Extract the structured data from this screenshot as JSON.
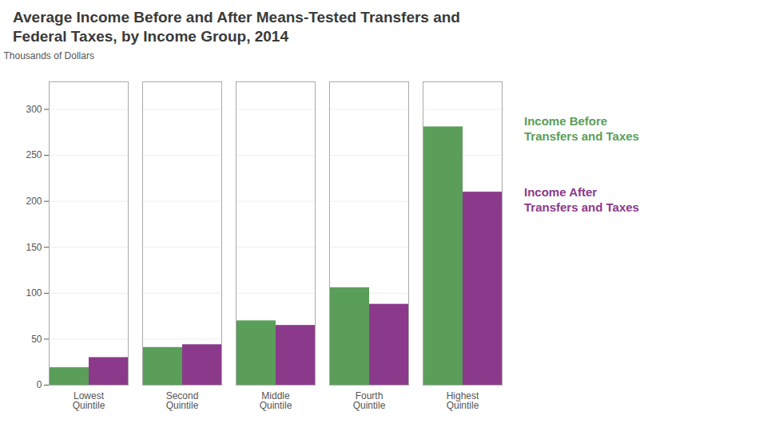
{
  "chart_data": {
    "type": "bar",
    "title": "Average Income Before and After Means-Tested Transfers and\nFederal Taxes, by Income Group, 2014",
    "ylabel": "Thousands of Dollars",
    "categories": [
      "Lowest\nQuintile",
      "Second\nQuintile",
      "Middle\nQuintile",
      "Fourth\nQuintile",
      "Highest\nQuintile"
    ],
    "series": [
      {
        "name": "Income Before\nTransfers and Taxes",
        "color": "#5a9e5a",
        "values": [
          19,
          41,
          70,
          106,
          281
        ]
      },
      {
        "name": "Income After\nTransfers and Taxes",
        "color": "#8b3a8b",
        "values": [
          30,
          44,
          65,
          88,
          210
        ]
      }
    ],
    "ylim": [
      0,
      330
    ],
    "yticks": [
      0,
      50,
      100,
      150,
      200,
      250,
      300
    ],
    "grid": true,
    "legend": "right"
  }
}
